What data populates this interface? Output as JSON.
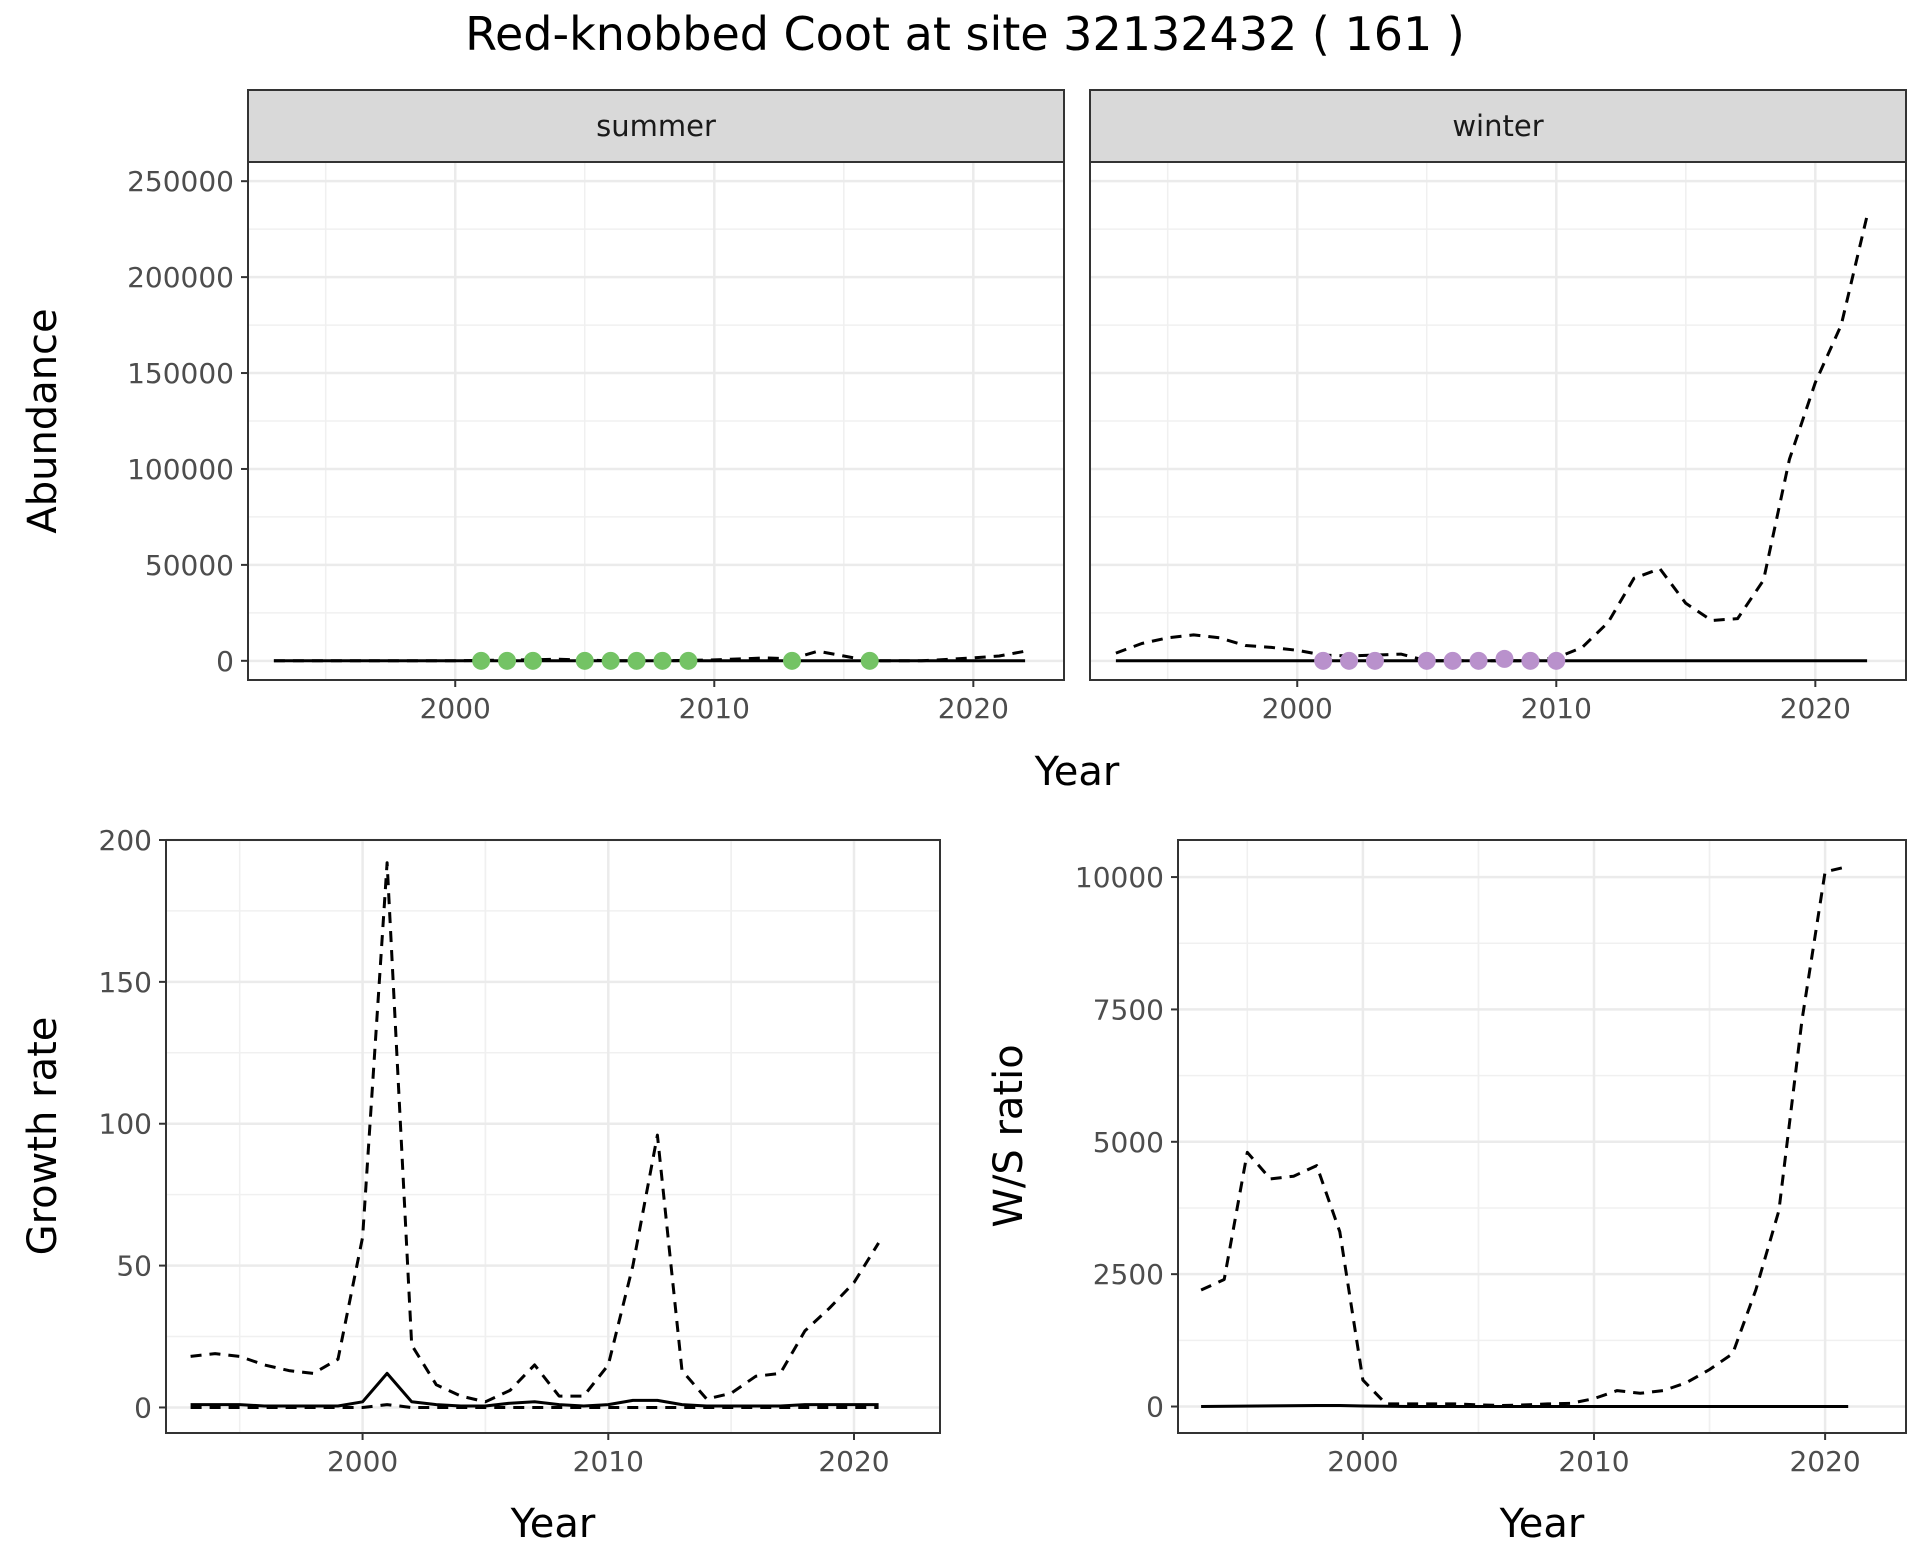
{
  "title": "Red-knobbed Coot at site 32132432 ( 161 )",
  "chart_data": [
    {
      "type": "line",
      "panel": "abundance",
      "facets": [
        "summer",
        "winter"
      ],
      "xlabel": "Year",
      "ylabel": "Abundance",
      "xlim": [
        1992,
        2023.5
      ],
      "ylim": [
        -10000,
        260000
      ],
      "xticks": [
        2000,
        2010,
        2020
      ],
      "yticks": [
        0,
        50000,
        100000,
        150000,
        200000,
        250000
      ],
      "ytick_labels": [
        "0",
        "50000",
        "100000",
        "150000",
        "200000",
        "250000"
      ],
      "grid": true,
      "point_colors": {
        "summer": "#74c365",
        "winter": "#b991cc"
      },
      "series": {
        "summer": {
          "solid": {
            "x": [
              1993,
              2022
            ],
            "y": [
              0,
              0
            ]
          },
          "dashed": {
            "x": [
              1993,
              1996,
              2000,
              2004,
              2006,
              2008,
              2010,
              2012,
              2013,
              2014,
              2015,
              2016,
              2018,
              2020,
              2021,
              2022
            ],
            "y": [
              0,
              0,
              0,
              800,
              0,
              0,
              500,
              1500,
              1000,
              5000,
              2500,
              0,
              0,
              1500,
              2500,
              5000
            ]
          },
          "points": {
            "x": [
              2001,
              2002,
              2003,
              2005,
              2006,
              2007,
              2008,
              2009,
              2013,
              2016
            ],
            "y": [
              0,
              0,
              0,
              0,
              0,
              0,
              0,
              0,
              0,
              0
            ]
          }
        },
        "winter": {
          "solid": {
            "x": [
              1993,
              2022
            ],
            "y": [
              0,
              0
            ]
          },
          "dashed": {
            "x": [
              1993,
              1994,
              1995,
              1996,
              1997,
              1998,
              1999,
              2000,
              2001,
              2002,
              2003,
              2004,
              2005,
              2006,
              2007,
              2008,
              2009,
              2010,
              2011,
              2012,
              2013,
              2014,
              2015,
              2016,
              2017,
              2018,
              2019,
              2020,
              2021,
              2022
            ],
            "y": [
              4000,
              9000,
              12000,
              13500,
              12000,
              8000,
              7000,
              5500,
              3000,
              2500,
              3000,
              3500,
              0,
              0,
              0,
              0,
              0,
              1500,
              7000,
              20000,
              43000,
              48000,
              30000,
              21000,
              22000,
              42000,
              105000,
              145000,
              175000,
              232000
            ]
          },
          "points": {
            "x": [
              2001,
              2002,
              2003,
              2005,
              2006,
              2007,
              2008,
              2009,
              2010
            ],
            "y": [
              0,
              0,
              0,
              0,
              0,
              0,
              1000,
              0,
              0
            ]
          }
        }
      }
    },
    {
      "type": "line",
      "panel": "growth",
      "xlabel": "Year",
      "ylabel": "Growth rate",
      "xlim": [
        1992,
        2023.5
      ],
      "ylim": [
        -9,
        200
      ],
      "xticks": [
        2000,
        2010,
        2020
      ],
      "yticks": [
        0,
        50,
        100,
        150,
        200
      ],
      "grid": true,
      "series": [
        {
          "style": "dashed",
          "x": [
            1993,
            1994,
            1995,
            1996,
            1997,
            1998,
            1999,
            2000,
            2001,
            2002,
            2003,
            2004,
            2005,
            2006,
            2007,
            2008,
            2009,
            2010,
            2011,
            2012,
            2013,
            2014,
            2015,
            2016,
            2017,
            2018,
            2019,
            2020,
            2021
          ],
          "y": [
            18,
            19,
            18,
            15,
            13,
            12,
            17,
            60,
            192,
            22,
            8,
            4,
            2,
            6,
            15,
            4,
            4,
            15,
            50,
            96,
            13,
            3,
            5,
            11,
            12,
            27,
            35,
            44,
            58
          ]
        },
        {
          "style": "solid",
          "x": [
            1993,
            1994,
            1995,
            1996,
            1997,
            1998,
            1999,
            2000,
            2001,
            2002,
            2003,
            2004,
            2005,
            2006,
            2007,
            2008,
            2009,
            2010,
            2011,
            2012,
            2013,
            2014,
            2015,
            2016,
            2017,
            2018,
            2019,
            2020,
            2021
          ],
          "y": [
            1,
            1,
            1,
            0.5,
            0.5,
            0.5,
            0.5,
            2,
            12,
            2,
            1,
            0.5,
            0.5,
            1.5,
            2,
            1,
            0.5,
            1,
            2.5,
            2.5,
            1,
            0.5,
            0.5,
            0.5,
            0.5,
            1,
            1,
            1,
            1
          ]
        },
        {
          "style": "dashed",
          "x": [
            1993,
            2000,
            2001,
            2002,
            2010,
            2021
          ],
          "y": [
            0,
            0,
            1,
            0,
            0,
            0
          ]
        }
      ]
    },
    {
      "type": "line",
      "panel": "ratio",
      "xlabel": "Year",
      "ylabel": "W/S ratio",
      "xlim": [
        1992,
        2023.5
      ],
      "ylim": [
        -500,
        10700
      ],
      "xticks": [
        2000,
        2010,
        2020
      ],
      "yticks": [
        0,
        2500,
        5000,
        7500,
        10000
      ],
      "grid": true,
      "series": [
        {
          "style": "dashed",
          "x": [
            1993,
            1994,
            1995,
            1996,
            1997,
            1998,
            1999,
            2000,
            2001,
            2002,
            2003,
            2004,
            2005,
            2006,
            2007,
            2008,
            2009,
            2010,
            2011,
            2012,
            2013,
            2014,
            2015,
            2016,
            2017,
            2018,
            2019,
            2020,
            2021
          ],
          "y": [
            2200,
            2400,
            4800,
            4300,
            4350,
            4550,
            3300,
            500,
            50,
            50,
            50,
            50,
            30,
            20,
            30,
            50,
            60,
            150,
            300,
            250,
            300,
            450,
            700,
            1000,
            2200,
            3700,
            7300,
            10100,
            10200
          ]
        },
        {
          "style": "solid",
          "x": [
            1993,
            1998,
            1999,
            2000,
            2002,
            2021
          ],
          "y": [
            0,
            20,
            20,
            10,
            0,
            0
          ]
        }
      ]
    }
  ]
}
